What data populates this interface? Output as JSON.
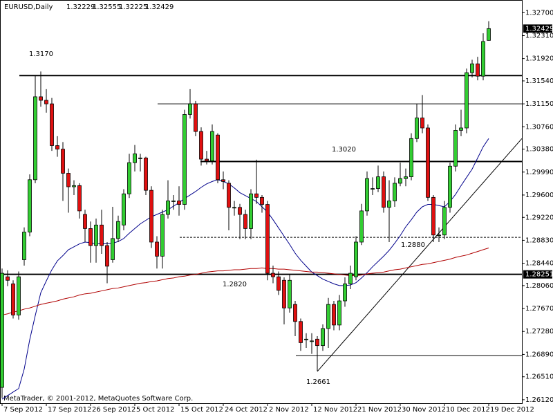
{
  "chart_data": {
    "type": "candlestick",
    "symbol": "EURUSD,Daily",
    "footer": "MetaTrader, © 2001-2012, MetaQuotes Software Corp.",
    "categories": [
      "7 Sep 2012",
      null,
      null,
      null,
      null,
      null,
      null,
      null,
      "17 Sep 2012",
      null,
      null,
      null,
      null,
      null,
      null,
      null,
      "26 Sep 2012",
      null,
      null,
      null,
      null,
      null,
      null,
      null,
      "5 Oct 2012",
      null,
      null,
      null,
      null,
      null,
      null,
      null,
      "15 Oct 2012",
      null,
      null,
      null,
      null,
      null,
      null,
      null,
      "24 Oct 2012",
      null,
      null,
      null,
      null,
      null,
      null,
      null,
      "2 Nov 2012",
      null,
      null,
      null,
      null,
      null,
      null,
      null,
      "12 Nov 2012",
      null,
      null,
      null,
      null,
      null,
      null,
      null,
      "21 Nov 2012",
      null,
      null,
      null,
      null,
      null,
      null,
      null,
      "30 Nov 2012",
      null,
      null,
      null,
      null,
      null,
      null,
      null,
      "10 Dec 2012",
      null,
      null,
      null,
      null,
      null,
      null,
      null,
      "19 Dec 2012"
    ],
    "open": [
      1.2633,
      1.2821,
      1.2809,
      1.2756,
      1.285,
      1.2897,
      1.2986,
      1.3127,
      1.3121,
      1.3115,
      1.3044,
      1.3038,
      1.2997,
      1.2974,
      1.2976,
      1.2927,
      1.2903,
      1.2874,
      1.2909,
      1.2874,
      1.285,
      1.2886,
      1.2909,
      1.2962,
      1.3015,
      1.3023,
      1.3023,
      1.2968,
      1.288,
      1.2856,
      1.2927,
      1.295,
      1.295,
      1.2944,
      1.3097,
      1.3115,
      1.3068,
      1.3021,
      1.3018,
      1.3062,
      1.2986,
      1.298,
      1.2939,
      1.2939,
      1.2927,
      1.2903,
      1.2962,
      1.2956,
      1.2944,
      1.2827,
      1.2821,
      1.2815,
      1.2768,
      1.2774,
      1.2745,
      1.2715,
      1.2712,
      1.2715,
      1.2704,
      1.2733,
      1.2774,
      1.2739,
      1.278,
      1.2809,
      1.2821,
      1.288,
      1.2933,
      1.2971,
      1.2971,
      1.2991,
      1.2939,
      1.295,
      1.298,
      1.2988,
      1.2991,
      1.3056,
      1.3091,
      1.3074,
      1.2956,
      1.2892,
      1.2892,
      1.2939,
      1.3009,
      1.307,
      1.3074,
      1.3168,
      1.3183,
      1.3162,
      1.32229
    ],
    "high": [
      1.2835,
      1.2832,
      1.2815,
      1.283,
      1.2905,
      1.2995,
      1.3164,
      1.317,
      1.314,
      1.3125,
      1.306,
      1.305,
      1.3005,
      1.2985,
      1.298,
      1.2935,
      1.2915,
      1.292,
      1.2935,
      1.288,
      1.294,
      1.2925,
      1.297,
      1.303,
      1.3045,
      1.303,
      1.3025,
      1.2975,
      1.289,
      1.2935,
      1.2985,
      1.296,
      1.2975,
      1.3105,
      1.314,
      1.312,
      1.3075,
      1.3035,
      1.308,
      1.3065,
      1.3,
      1.2985,
      1.295,
      1.2945,
      1.2935,
      1.297,
      1.302,
      1.296,
      1.295,
      1.284,
      1.283,
      1.282,
      1.2825,
      1.278,
      1.275,
      1.2725,
      1.2725,
      1.272,
      1.274,
      1.2785,
      1.278,
      1.279,
      1.282,
      1.284,
      1.289,
      1.2945,
      1.3,
      1.299,
      1.301,
      1.3,
      1.2985,
      1.299,
      1.3015,
      1.3005,
      1.3065,
      1.3115,
      1.313,
      1.308,
      1.296,
      1.2905,
      1.295,
      1.3015,
      1.308,
      1.3105,
      1.3175,
      1.319,
      1.3195,
      1.3235,
      1.32555
    ],
    "low": [
      1.2615,
      1.2805,
      1.275,
      1.2748,
      1.284,
      1.289,
      1.298,
      1.311,
      1.31,
      1.3035,
      1.3025,
      1.295,
      1.293,
      1.296,
      1.292,
      1.288,
      1.2845,
      1.2845,
      1.286,
      1.281,
      1.2845,
      1.288,
      1.29,
      1.2955,
      1.3,
      1.3,
      1.296,
      1.287,
      1.2835,
      1.2835,
      1.292,
      1.2935,
      1.2925,
      1.2935,
      1.309,
      1.306,
      1.301,
      1.3012,
      1.3012,
      1.298,
      1.297,
      1.29,
      1.2925,
      1.2885,
      1.2885,
      1.2885,
      1.2945,
      1.293,
      1.2815,
      1.281,
      1.279,
      1.274,
      1.276,
      1.272,
      1.2695,
      1.27,
      1.269,
      1.2661,
      1.2695,
      1.27,
      1.273,
      1.273,
      1.277,
      1.28,
      1.2815,
      1.2875,
      1.2925,
      1.296,
      1.2965,
      1.293,
      1.288,
      1.294,
      1.2975,
      1.2975,
      1.2985,
      1.305,
      1.3065,
      1.295,
      1.288,
      1.288,
      1.2885,
      1.293,
      1.3,
      1.306,
      1.3065,
      1.316,
      1.3155,
      1.3155,
      1.32225
    ],
    "close": [
      1.2827,
      1.2815,
      1.2756,
      1.2821,
      1.2897,
      1.2986,
      1.3127,
      1.3121,
      1.3115,
      1.3044,
      1.3038,
      1.2997,
      1.2974,
      1.2976,
      1.2933,
      1.2903,
      1.2874,
      1.2909,
      1.2874,
      1.2839,
      1.2886,
      1.2915,
      1.2962,
      1.3015,
      1.303,
      1.3023,
      1.2968,
      1.288,
      1.2856,
      1.2927,
      1.295,
      1.295,
      1.2944,
      1.3097,
      1.3115,
      1.3068,
      1.3021,
      1.3018,
      1.3068,
      1.2986,
      1.2983,
      1.2939,
      1.2939,
      1.2927,
      1.2903,
      1.2962,
      1.2956,
      1.2944,
      1.2827,
      1.2821,
      1.2798,
      1.2768,
      1.2815,
      1.2745,
      1.2709,
      1.2715,
      1.2712,
      1.2704,
      1.2733,
      1.2774,
      1.2739,
      1.278,
      1.2809,
      1.2827,
      1.288,
      1.2933,
      1.2988,
      1.2971,
      1.2991,
      1.2939,
      1.295,
      1.298,
      1.2988,
      1.2991,
      1.3056,
      1.3091,
      1.3074,
      1.2956,
      1.2892,
      1.2892,
      1.2939,
      1.3009,
      1.307,
      1.3074,
      1.3168,
      1.3183,
      1.3162,
      1.3221,
      1.32429
    ],
    "up_color": "#32cd32",
    "down_color": "#e01010",
    "moving_averages": [
      {
        "color": "#00008b",
        "values": [
          1.2613,
          1.2619,
          1.2625,
          1.2631,
          1.2664,
          1.2714,
          1.2755,
          1.2794,
          1.2814,
          1.2833,
          1.2848,
          1.2857,
          1.2867,
          1.2872,
          1.2877,
          1.288,
          1.2879,
          1.2877,
          1.2877,
          1.2877,
          1.2878,
          1.2881,
          1.2886,
          1.2895,
          1.2903,
          1.2911,
          1.2917,
          1.2923,
          1.2927,
          1.2931,
          1.2935,
          1.2941,
          1.2947,
          1.2954,
          1.296,
          1.2966,
          1.2973,
          1.2979,
          1.2983,
          1.2986,
          1.2983,
          1.2979,
          1.2972,
          1.2964,
          1.2959,
          1.2954,
          1.2949,
          1.294,
          1.2931,
          1.2918,
          1.2904,
          1.289,
          1.2876,
          1.2861,
          1.2849,
          1.2839,
          1.2829,
          1.2823,
          1.2817,
          1.2813,
          1.2809,
          1.2806,
          1.2806,
          1.2807,
          1.2811,
          1.2819,
          1.2828,
          1.2838,
          1.2847,
          1.2856,
          1.2866,
          1.2878,
          1.2891,
          1.2906,
          1.2918,
          1.2931,
          1.294,
          1.2944,
          1.2944,
          1.2942,
          1.294,
          1.2949,
          1.2961,
          1.2976,
          1.299,
          1.3004,
          1.3023,
          1.3042,
          1.3056
        ]
      },
      {
        "color": "#b00000",
        "values": [
          1.2756,
          1.2758,
          1.2761,
          1.2763,
          1.2766,
          1.2768,
          1.2771,
          1.2774,
          1.2776,
          1.2778,
          1.278,
          1.2783,
          1.2785,
          1.2787,
          1.279,
          1.2792,
          1.2793,
          1.2795,
          1.2797,
          1.2799,
          1.2801,
          1.2802,
          1.2804,
          1.2806,
          1.2808,
          1.281,
          1.2811,
          1.2813,
          1.2814,
          1.2816,
          1.2818,
          1.2819,
          1.2821,
          1.2822,
          1.2824,
          1.2825,
          1.2827,
          1.2829,
          1.283,
          1.2831,
          1.2831,
          1.2832,
          1.2833,
          1.2833,
          1.2834,
          1.2835,
          1.2835,
          1.2836,
          1.2835,
          1.2835,
          1.2834,
          1.2834,
          1.2833,
          1.2832,
          1.2831,
          1.283,
          1.2829,
          1.2829,
          1.2828,
          1.2827,
          1.2826,
          1.2825,
          1.2824,
          1.2823,
          1.2823,
          1.2824,
          1.2826,
          1.2827,
          1.2828,
          1.2829,
          1.2831,
          1.2833,
          1.2834,
          1.2836,
          1.2838,
          1.284,
          1.2842,
          1.2843,
          1.2845,
          1.2847,
          1.2849,
          1.2851,
          1.2854,
          1.2856,
          1.2858,
          1.2861,
          1.2864,
          1.2867,
          1.287
        ]
      }
    ],
    "levels": [
      1.3163,
      1.3115,
      1.3017,
      1.2888,
      1.28251,
      1.2687
    ],
    "trendline": [
      1.266,
      1.3056
    ],
    "annotations": [
      "1.3170",
      "1.3020",
      "1.2820",
      "1.2880",
      "1.2661"
    ],
    "ylim": [
      1.2606,
      1.3288
    ],
    "yticks": [
      {
        "value": 1.327,
        "label": "1.32700"
      },
      {
        "value": 1.3231,
        "label": "1.32310"
      },
      {
        "value": 1.3192,
        "label": "1.31920"
      },
      {
        "value": 1.3154,
        "label": "1.31540"
      },
      {
        "value": 1.3115,
        "label": "1.31150"
      },
      {
        "value": 1.3076,
        "label": "1.30760"
      },
      {
        "value": 1.3038,
        "label": "1.30380"
      },
      {
        "value": 1.2999,
        "label": "1.29990"
      },
      {
        "value": 1.296,
        "label": "1.29600"
      },
      {
        "value": 1.2922,
        "label": "1.29220"
      },
      {
        "value": 1.2883,
        "label": "1.28830"
      },
      {
        "value": 1.2844,
        "label": "1.28440"
      },
      {
        "value": 1.2806,
        "label": "1.28060"
      },
      {
        "value": 1.2767,
        "label": "1.27670"
      },
      {
        "value": 1.2728,
        "label": "1.27280"
      },
      {
        "value": 1.2689,
        "label": "1.26890"
      },
      {
        "value": 1.2651,
        "label": "1.26510"
      },
      {
        "value": 1.2612,
        "label": "1.26120"
      }
    ]
  }
}
